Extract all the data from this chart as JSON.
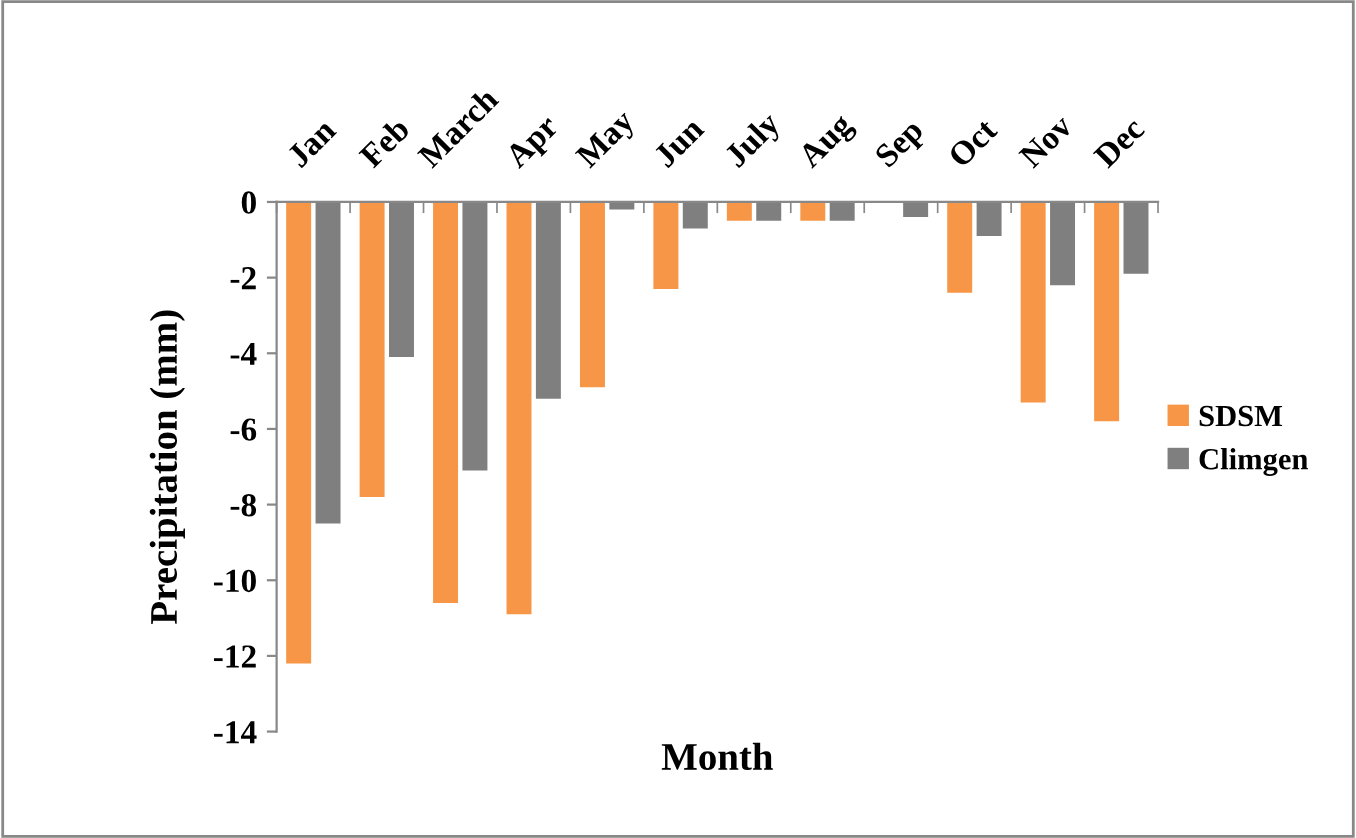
{
  "chart_data": {
    "type": "bar",
    "xlabel": "Month",
    "ylabel": "Precipitation (mm)",
    "categories": [
      "Jan",
      "Feb",
      "March",
      "Apr",
      "May",
      "Jun",
      "July",
      "Aug",
      "Sep",
      "Oct",
      "Nov",
      "Dec"
    ],
    "series": [
      {
        "name": "SDSM",
        "color": "#f79646",
        "values": [
          -12.2,
          -7.8,
          -10.6,
          -10.9,
          -4.9,
          -2.3,
          -0.5,
          -0.5,
          null,
          -2.4,
          -5.3,
          -5.8
        ]
      },
      {
        "name": "Climgen",
        "color": "#7f7f7f",
        "values": [
          -8.5,
          -4.1,
          -7.1,
          -5.2,
          -0.2,
          -0.7,
          -0.5,
          -0.5,
          -0.4,
          -0.9,
          -2.2,
          -1.9
        ]
      }
    ],
    "ylim": [
      -14,
      0
    ],
    "yticks": [
      -14,
      -12,
      -10,
      -8,
      -6,
      -4,
      -2,
      0
    ],
    "grid": false,
    "legend": "right"
  }
}
